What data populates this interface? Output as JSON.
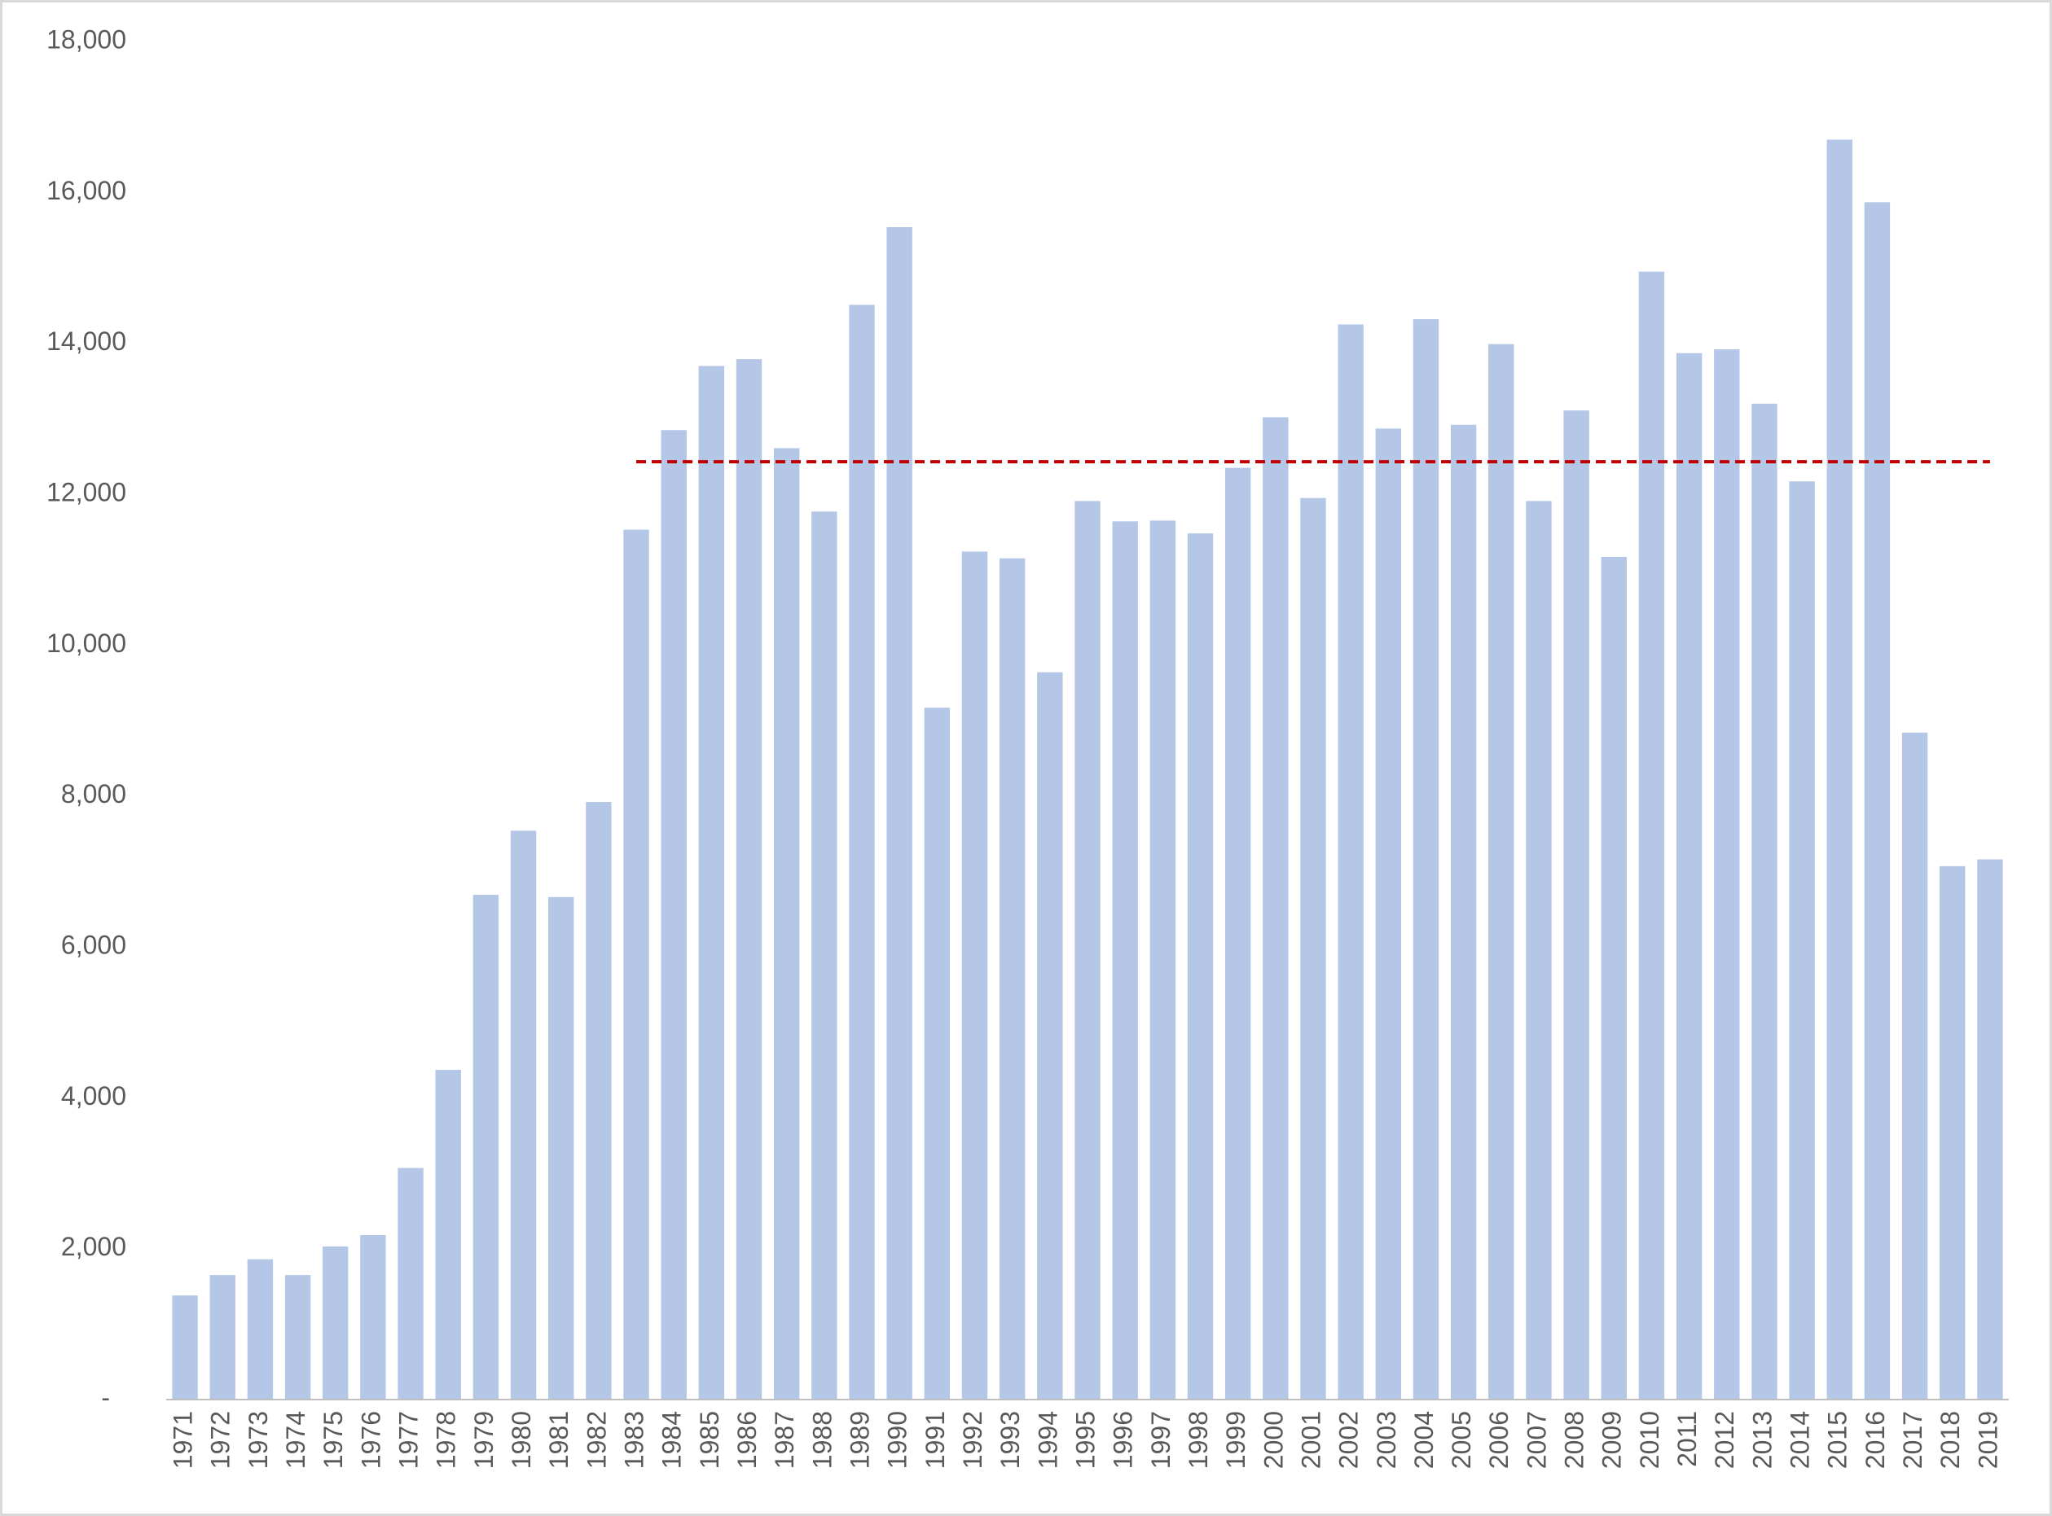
{
  "chart_data": {
    "type": "bar",
    "categories": [
      "1971",
      "1972",
      "1973",
      "1974",
      "1975",
      "1976",
      "1977",
      "1978",
      "1979",
      "1980",
      "1981",
      "1982",
      "1983",
      "1984",
      "1985",
      "1986",
      "1987",
      "1988",
      "1989",
      "1990",
      "1991",
      "1992",
      "1993",
      "1994",
      "1995",
      "1996",
      "1997",
      "1998",
      "1999",
      "2000",
      "2001",
      "2002",
      "2003",
      "2004",
      "2005",
      "2006",
      "2007",
      "2008",
      "2009",
      "2010",
      "2011",
      "2012",
      "2013",
      "2014",
      "2015",
      "2016",
      "2017",
      "2018",
      "2019"
    ],
    "values": [
      1380,
      1650,
      1860,
      1650,
      2030,
      2180,
      3070,
      4370,
      6690,
      7540,
      6660,
      7920,
      11530,
      12850,
      13700,
      13790,
      12610,
      11770,
      14510,
      15540,
      9170,
      11240,
      11150,
      9640,
      11910,
      11640,
      11650,
      11480,
      12350,
      13020,
      11950,
      14250,
      12870,
      14320,
      12920,
      13990,
      11910,
      13110,
      11170,
      14950,
      13870,
      13920,
      13200,
      12170,
      16700,
      15870,
      8840,
      7070,
      7160
    ],
    "color": "#b4c7e7",
    "ylim": [
      0,
      18000
    ],
    "yticks": [
      {
        "value": 0,
        "label": "-"
      },
      {
        "value": 2000,
        "label": "2,000"
      },
      {
        "value": 4000,
        "label": "4,000"
      },
      {
        "value": 6000,
        "label": "6,000"
      },
      {
        "value": 8000,
        "label": "8,000"
      },
      {
        "value": 10000,
        "label": "10,000"
      },
      {
        "value": 12000,
        "label": "12,000"
      },
      {
        "value": 14000,
        "label": "14,000"
      },
      {
        "value": 16000,
        "label": "16,000"
      },
      {
        "value": 18000,
        "label": "18,000"
      }
    ],
    "grid": false,
    "average_line": {
      "value": 12430,
      "start": "1983",
      "end": "2019",
      "color": "#c00000"
    }
  }
}
